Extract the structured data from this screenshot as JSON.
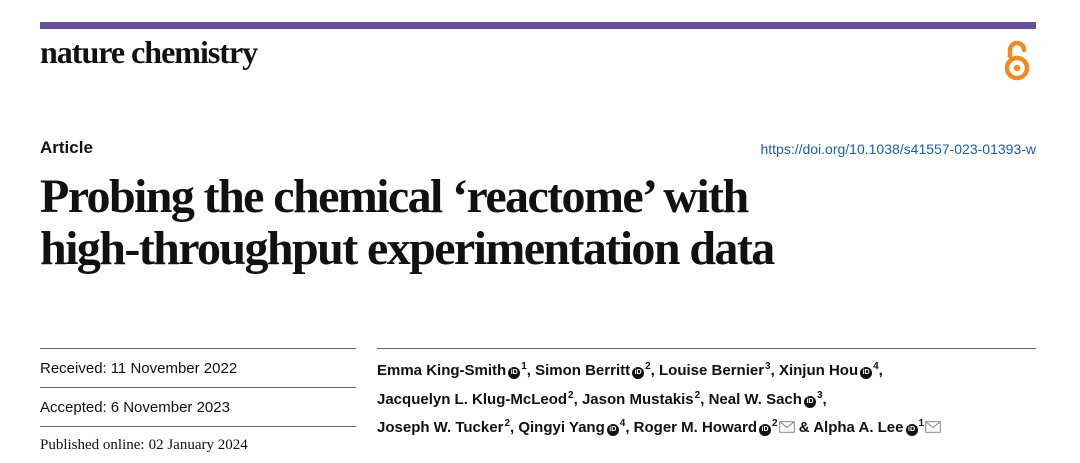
{
  "journal": {
    "name": "nature chemistry",
    "accent_color": "#6a4fa0",
    "oa_icon": "open-access-icon",
    "oa_color": "#f08a24"
  },
  "article": {
    "type": "Article",
    "doi": "https://doi.org/10.1038/s41557-023-01393-w",
    "title_lines": [
      "Probing the chemical ‘reactome’ with",
      "high-throughput experimentation data"
    ]
  },
  "dates": [
    {
      "label": "Received:",
      "value": "11 November 2022"
    },
    {
      "label": "Accepted:",
      "value": "6 November 2023"
    },
    {
      "label": "Published online:",
      "value": "02 January 2024"
    }
  ],
  "authors": [
    {
      "name": "Emma King-Smith",
      "orcid": true,
      "aff": "1",
      "sep": ","
    },
    {
      "name": "Simon Berritt",
      "orcid": true,
      "aff": "2",
      "sep": ","
    },
    {
      "name": "Louise Bernier",
      "orcid": false,
      "aff": "3",
      "sep": ","
    },
    {
      "name": "Xinjun Hou",
      "orcid": true,
      "aff": "4",
      "sep": ","
    },
    {
      "name": "Jacquelyn L. Klug-McLeod",
      "orcid": false,
      "aff": "2",
      "sep": ","
    },
    {
      "name": "Jason Mustakis",
      "orcid": false,
      "aff": "2",
      "sep": ","
    },
    {
      "name": "Neal W. Sach",
      "orcid": true,
      "aff": "3",
      "sep": ","
    },
    {
      "name": "Joseph W. Tucker",
      "orcid": false,
      "aff": "2",
      "sep": ","
    },
    {
      "name": "Qingyi Yang",
      "orcid": true,
      "aff": "4",
      "sep": ","
    },
    {
      "name": "Roger M. Howard",
      "orcid": true,
      "aff": "2",
      "mail": true,
      "sep": " &"
    },
    {
      "name": "Alpha A. Lee",
      "orcid": true,
      "aff": "1",
      "mail": true,
      "sep": ""
    }
  ],
  "icons": {
    "orcid": "orcid-icon",
    "mail": "mail-icon",
    "orcid_glyph": "iD"
  }
}
